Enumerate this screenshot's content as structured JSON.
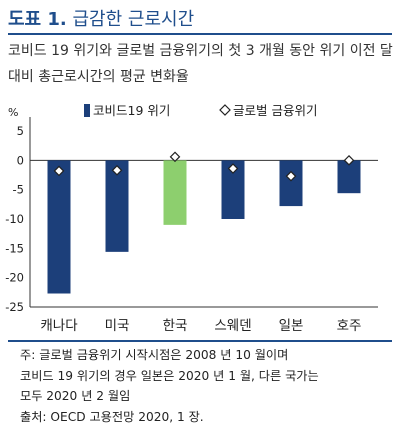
{
  "header": {
    "title_prefix": "도표 1.",
    "title_main": "급감한 근로시간",
    "subtitle": "코비드 19 위기와 글로벌 금융위기의 첫 3 개월 동안 위기 이전 달 대비 총근로시간의 평균 변화율"
  },
  "chart_data": {
    "type": "bar",
    "ylabel": "%",
    "ylim": [
      -25,
      5
    ],
    "yticks": [
      5,
      0,
      -5,
      -10,
      -15,
      -20,
      -25
    ],
    "categories": [
      "캐나다",
      "미국",
      "한국",
      "스웨덴",
      "일본",
      "호주"
    ],
    "series": [
      {
        "name": "코비드19 위기",
        "type": "bar",
        "values": [
          -22.7,
          -15.6,
          -11.0,
          -10.0,
          -7.8,
          -5.6
        ]
      },
      {
        "name": "글로벌 금융위기",
        "type": "marker",
        "values": [
          -1.8,
          -1.7,
          0.6,
          -1.4,
          -2.7,
          0.0
        ]
      }
    ],
    "highlight_category": "한국",
    "colors": {
      "bar": "#1c3f7a",
      "highlight": "#8dcf6e",
      "marker_fill": "#ffffff",
      "marker_stroke": "#222222"
    },
    "legend_position": "top"
  },
  "notes": [
    "주: 글로벌 금융위기 시작시점은 2008 년 10 월이며",
    "코비드 19 위기의 경우 일본은 2020 년 1 월, 다른 국가는",
    "모두 2020 년 2 월임",
    "출처: OECD 고용전망 2020, 1 장."
  ]
}
